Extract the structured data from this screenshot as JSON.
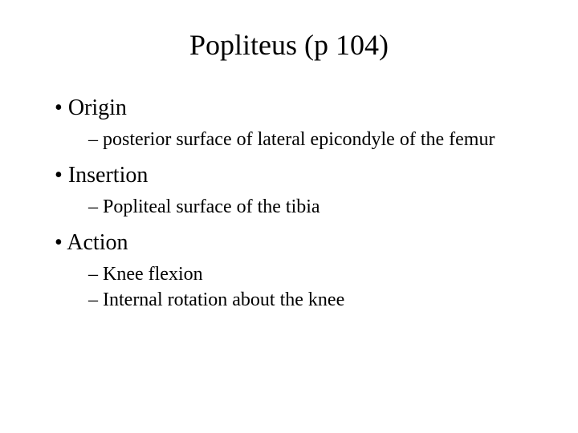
{
  "title": "Popliteus (p 104)",
  "sections": [
    {
      "heading": "Origin",
      "items": [
        "posterior surface of lateral epicondyle of the femur"
      ]
    },
    {
      "heading": "Insertion",
      "items": [
        "Popliteal surface of the tibia"
      ]
    },
    {
      "heading": "Action",
      "items": [
        "Knee flexion",
        "Internal rotation about the knee"
      ]
    }
  ],
  "style": {
    "background_color": "#ffffff",
    "text_color": "#000000",
    "font_family": "Times New Roman",
    "title_fontsize": 36,
    "heading_fontsize": 28,
    "item_fontsize": 24,
    "bullet_level1": "•",
    "bullet_level2": "–"
  }
}
